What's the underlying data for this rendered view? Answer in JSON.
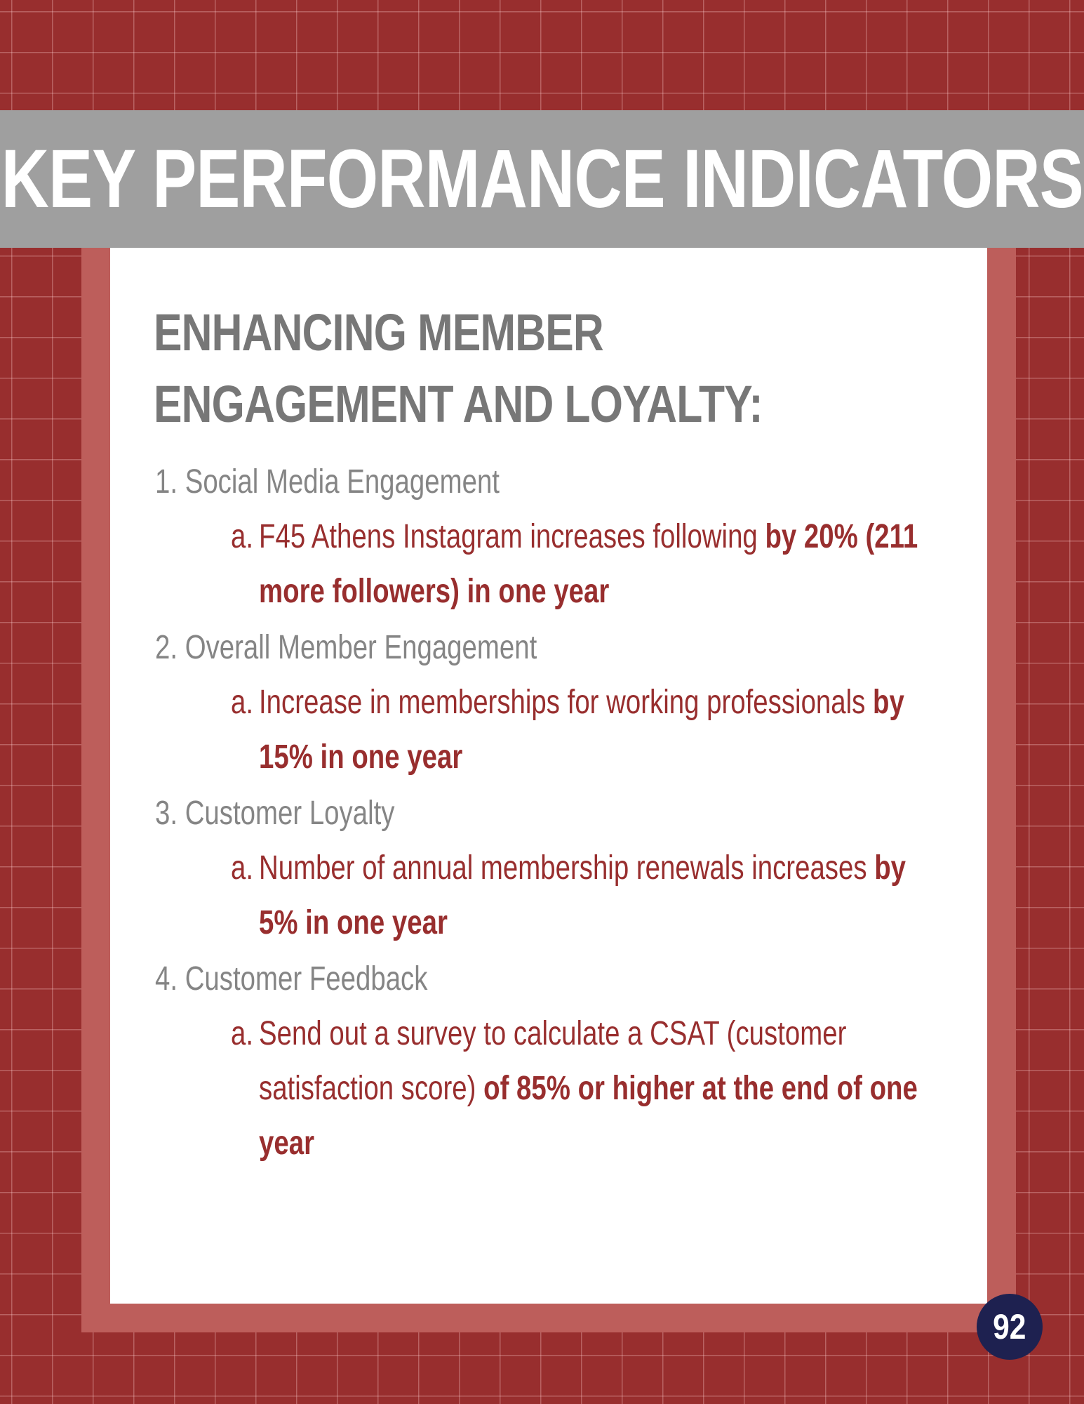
{
  "banner": {
    "title": "KEY PERFORMANCE INDICATORS"
  },
  "section": {
    "heading_line1": "ENHANCING MEMBER",
    "heading_line2": "ENGAGEMENT AND LOYALTY:"
  },
  "items": [
    {
      "number": "1.",
      "title": "Social Media Engagement",
      "sub_marker": "a.",
      "sub_text": "F45 Athens Instagram increases following ",
      "sub_bold": "by 20% (211 more followers) in one year"
    },
    {
      "number": "2.",
      "title": "Overall Member Engagement",
      "sub_marker": "a.",
      "sub_text": "Increase in memberships for working professionals ",
      "sub_bold": "by 15% in one year"
    },
    {
      "number": "3.",
      "title": "Customer Loyalty",
      "sub_marker": "a.",
      "sub_text": "Number of annual membership renewals increases ",
      "sub_bold": "by 5% in one year"
    },
    {
      "number": "4.",
      "title": "Customer Feedback",
      "sub_marker": "a.",
      "sub_text": "Send out a survey to calculate a CSAT (customer satisfaction score) ",
      "sub_bold": "of 85% or higher at the end of one year"
    }
  ],
  "page_number": "92",
  "colors": {
    "background_red": "#982e2e",
    "frame_red": "#bd5e5b",
    "banner_gray": "#9f9f9f",
    "heading_gray": "#777777",
    "badge_navy": "#1e2150"
  }
}
